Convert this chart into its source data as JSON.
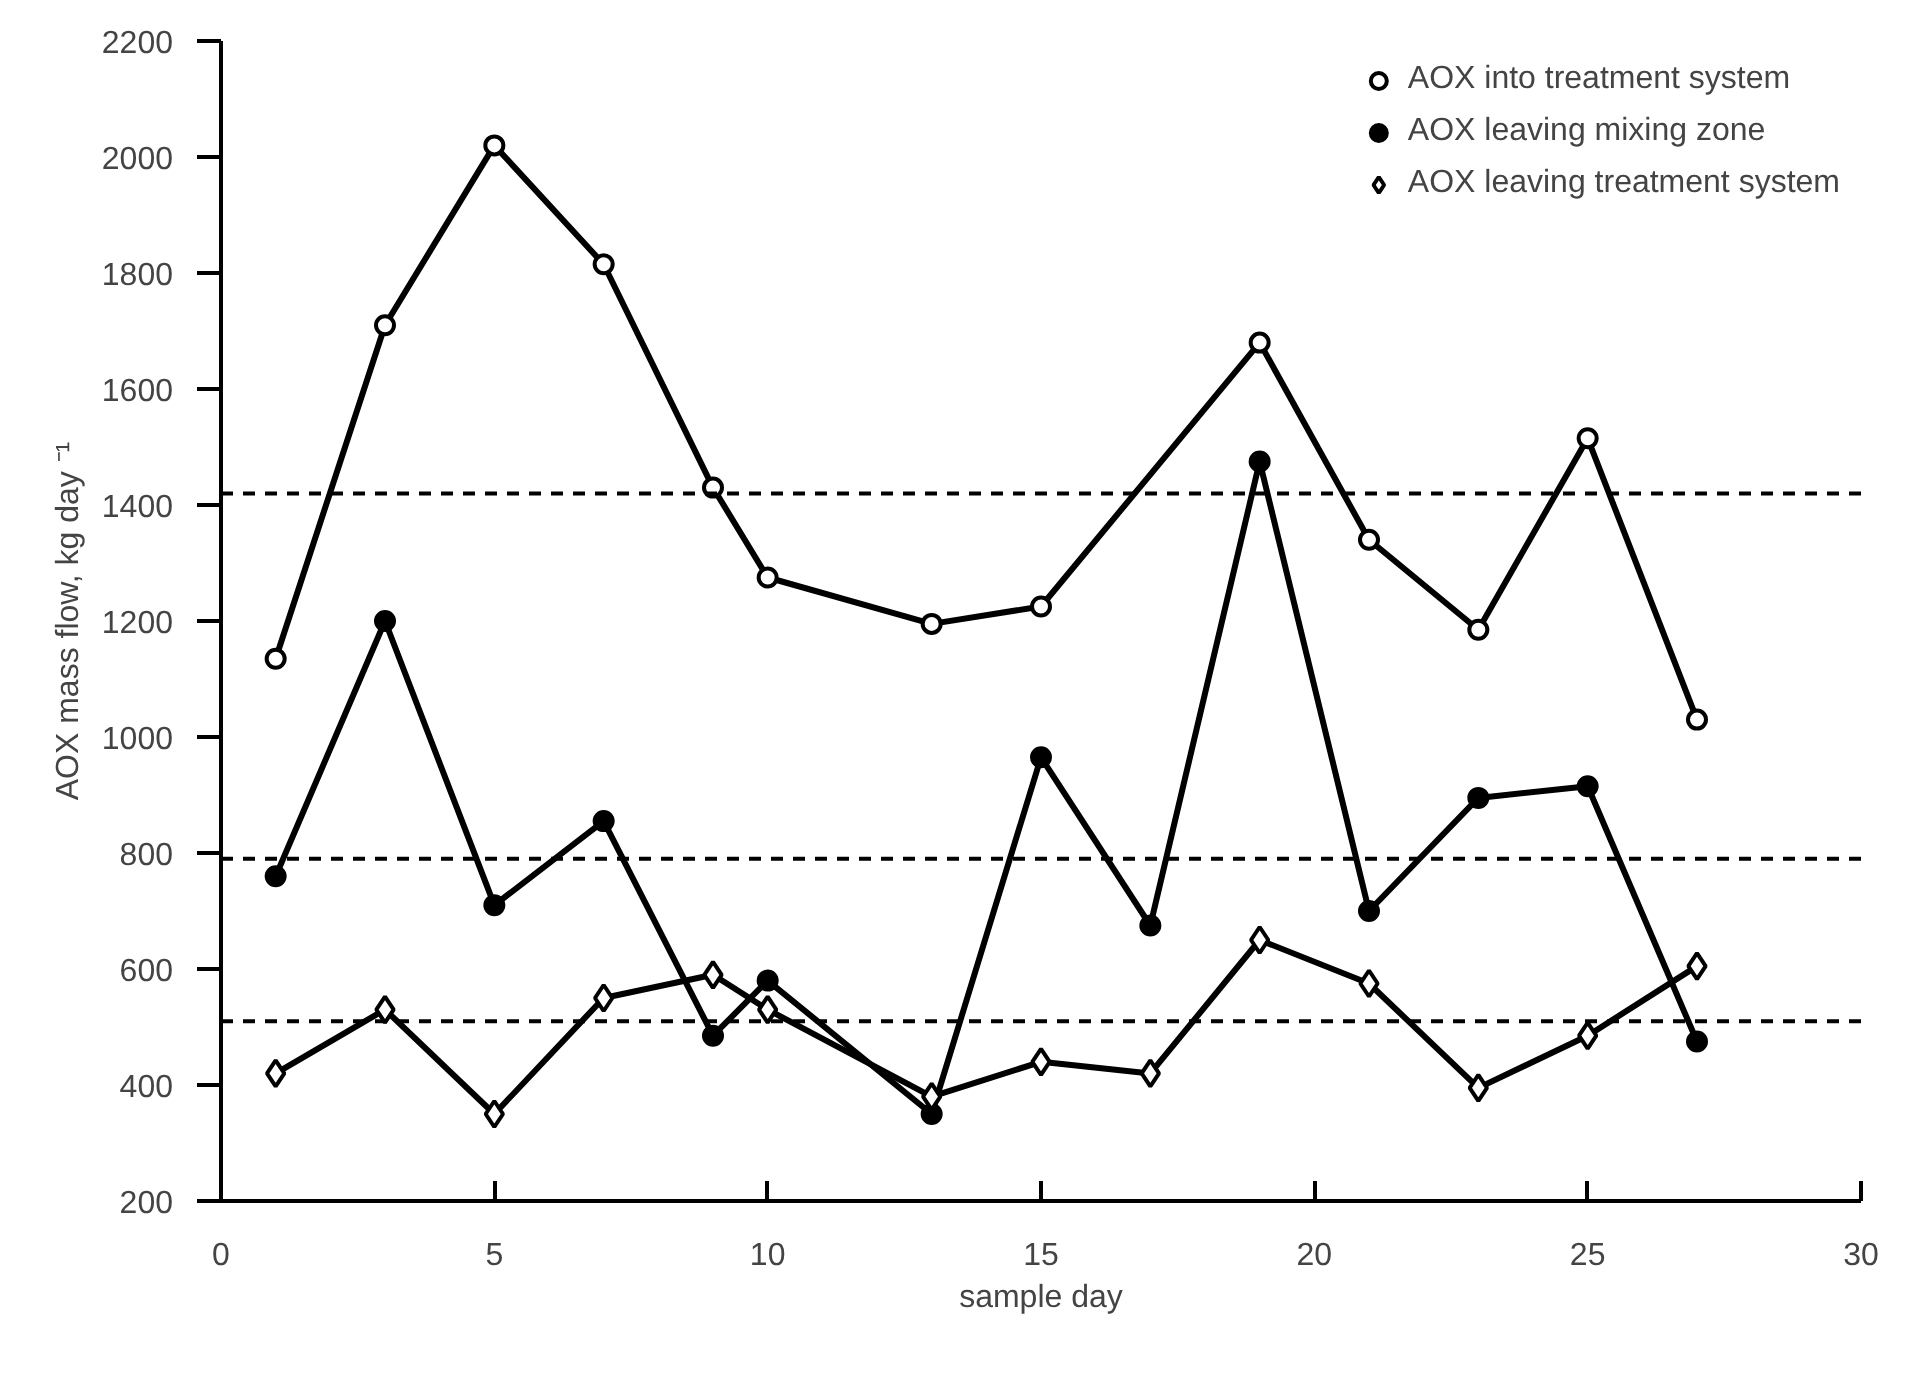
{
  "chart_data": {
    "type": "line",
    "xlabel": "sample day",
    "ylabel": "AOX mass flow, kg day ⁻¹",
    "xlim": [
      0,
      30
    ],
    "xticks": [
      0,
      5,
      10,
      15,
      20,
      25,
      30
    ],
    "ylim": [
      200,
      2200
    ],
    "yticks": [
      200,
      400,
      600,
      800,
      1000,
      1200,
      1400,
      1600,
      1800,
      2000,
      2200
    ],
    "grid": false,
    "legend": "top right",
    "line_style": "solid",
    "series": [
      {
        "name": "AOX into treatment system",
        "color": "#000000",
        "marker": "circle_open",
        "x": [
          1,
          3,
          5,
          7,
          9,
          10,
          13,
          15,
          19,
          21,
          23,
          25,
          27
        ],
        "values": [
          1135,
          1710,
          2020,
          1815,
          1430,
          1275,
          1195,
          1225,
          1680,
          1340,
          1185,
          1515,
          1030
        ]
      },
      {
        "name": "AOX leaving mixing zone",
        "color": "#000000",
        "marker": "circle",
        "x": [
          1,
          3,
          5,
          7,
          9,
          10,
          13,
          15,
          17,
          19,
          21,
          23,
          25,
          27
        ],
        "values": [
          760,
          1200,
          710,
          855,
          485,
          580,
          350,
          965,
          675,
          1475,
          700,
          895,
          915,
          475
        ]
      },
      {
        "name": "AOX leaving treatment system",
        "color": "#000000",
        "marker": "diamond_open",
        "x": [
          1,
          3,
          5,
          7,
          9,
          10,
          13,
          15,
          17,
          19,
          21,
          23,
          25,
          27
        ],
        "values": [
          420,
          530,
          350,
          550,
          590,
          530,
          380,
          440,
          420,
          650,
          575,
          395,
          485,
          605
        ]
      }
    ],
    "ref_lines": [
      {
        "axis": "y",
        "value": 1420,
        "line_style": "dashed",
        "color": "#000000"
      },
      {
        "axis": "y",
        "value": 790,
        "line_style": "dashed",
        "color": "#000000"
      },
      {
        "axis": "y",
        "value": 510,
        "line_style": "dashed",
        "color": "#000000"
      }
    ]
  }
}
